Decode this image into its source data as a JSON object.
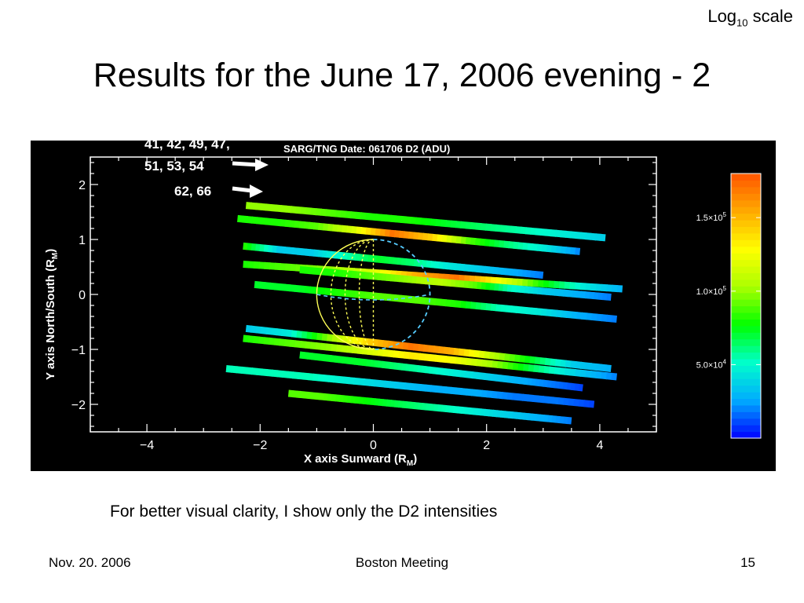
{
  "scale_note": {
    "prefix": "Log",
    "sub": "10",
    "suffix": " scale"
  },
  "title": "Results for the June 17, 2006 evening - 2",
  "figure": {
    "plot_title": "SARG/TNG Date: 061706 D2 (ADU)",
    "arrow_labels": [
      "41, 42, 49, 47,",
      "51, 53, 54",
      "62, 66"
    ],
    "x_axis_label": "X axis Sunward (R",
    "y_axis_label": "Y axis North/South (R",
    "axis_unit_sub": "M",
    "x_ticks": [
      "−4",
      "−2",
      "0",
      "2",
      "4"
    ],
    "y_ticks": [
      "2",
      "1",
      "0",
      "−1",
      "−2"
    ],
    "colorbar": {
      "tick_labels": [
        {
          "mantissa": "1.5×10",
          "exp": "5"
        },
        {
          "mantissa": "1.0×10",
          "exp": "5"
        },
        {
          "mantissa": "5.0×10",
          "exp": "4"
        }
      ],
      "tick_values": [
        150000,
        100000,
        50000
      ],
      "range": [
        0,
        180000
      ]
    }
  },
  "chart_data": {
    "type": "scatter",
    "title": "SARG/TNG Date: 061706 D2 (ADU)",
    "xlabel": "X axis Sunward (RM)",
    "ylabel": "Y axis North/South (RM)",
    "xlim": [
      -5,
      5
    ],
    "ylim": [
      -2.5,
      2.5
    ],
    "colorbar_range": [
      0,
      180000
    ],
    "colormap": [
      "#0000ff",
      "#00aaff",
      "#00ffcc",
      "#00ff00",
      "#aaff00",
      "#ffff00",
      "#ffaa00",
      "#ff5500"
    ],
    "stripes": [
      {
        "x1": -2.25,
        "y1": 1.62,
        "x2": 4.1,
        "y2": 1.03,
        "values": [
          0.55,
          0.55,
          0.5,
          0.45,
          0.45,
          0.4,
          0.35,
          0.3,
          0.25,
          0.2
        ]
      },
      {
        "x1": -2.4,
        "y1": 1.38,
        "x2": 3.65,
        "y2": 0.78,
        "values": [
          0.45,
          0.45,
          0.5,
          0.65,
          0.95,
          0.8,
          0.5,
          0.35,
          0.25,
          0.1
        ]
      },
      {
        "x1": -2.3,
        "y1": 0.88,
        "x2": 3.0,
        "y2": 0.35,
        "values": [
          0.45,
          0.2,
          0.2,
          0.3,
          0.4,
          0.35,
          0.25,
          0.2,
          0.15,
          0.1
        ]
      },
      {
        "x1": -2.3,
        "y1": 0.55,
        "x2": 4.4,
        "y2": 0.1,
        "values": [
          0.45,
          0.5,
          0.55,
          0.65,
          0.85,
          0.95,
          0.7,
          0.45,
          0.25,
          0.15
        ]
      },
      {
        "x1": -1.3,
        "y1": 0.45,
        "x2": 4.2,
        "y2": -0.05,
        "values": [
          0.45,
          0.45,
          0.5,
          0.55,
          0.6,
          0.5,
          0.3,
          0.2,
          0.15,
          0.1
        ]
      },
      {
        "x1": -2.1,
        "y1": 0.18,
        "x2": 4.3,
        "y2": -0.45,
        "values": [
          0.4,
          0.4,
          0.45,
          0.5,
          0.5,
          0.45,
          0.3,
          0.25,
          0.15,
          0.1
        ]
      },
      {
        "x1": -2.25,
        "y1": -0.62,
        "x2": 4.2,
        "y2": -1.35,
        "values": [
          0.2,
          0.25,
          0.55,
          0.8,
          0.95,
          0.85,
          0.6,
          0.4,
          0.2,
          0.15
        ]
      },
      {
        "x1": -2.3,
        "y1": -0.8,
        "x2": 4.3,
        "y2": -1.5,
        "values": [
          0.45,
          0.5,
          0.55,
          0.65,
          0.75,
          0.7,
          0.55,
          0.35,
          0.2,
          0.1
        ]
      },
      {
        "x1": -1.3,
        "y1": -1.1,
        "x2": 3.7,
        "y2": -1.7,
        "values": [
          0.4,
          0.4,
          0.4,
          0.35,
          0.3,
          0.25,
          0.2,
          0.15,
          0.1,
          0.05
        ]
      },
      {
        "x1": -2.6,
        "y1": -1.35,
        "x2": 3.9,
        "y2": -2.0,
        "values": [
          0.3,
          0.3,
          0.3,
          0.25,
          0.2,
          0.15,
          0.15,
          0.1,
          0.1,
          0.05
        ]
      },
      {
        "x1": -1.5,
        "y1": -1.8,
        "x2": 3.5,
        "y2": -2.3,
        "values": [
          0.5,
          0.5,
          0.45,
          0.4,
          0.35,
          0.3,
          0.25,
          0.2,
          0.15,
          0.1
        ]
      }
    ]
  },
  "caption": "For better visual clarity, I show only the D2 intensities",
  "footer": {
    "date": "Nov. 20. 2006",
    "event": "Boston Meeting",
    "page": "15"
  }
}
